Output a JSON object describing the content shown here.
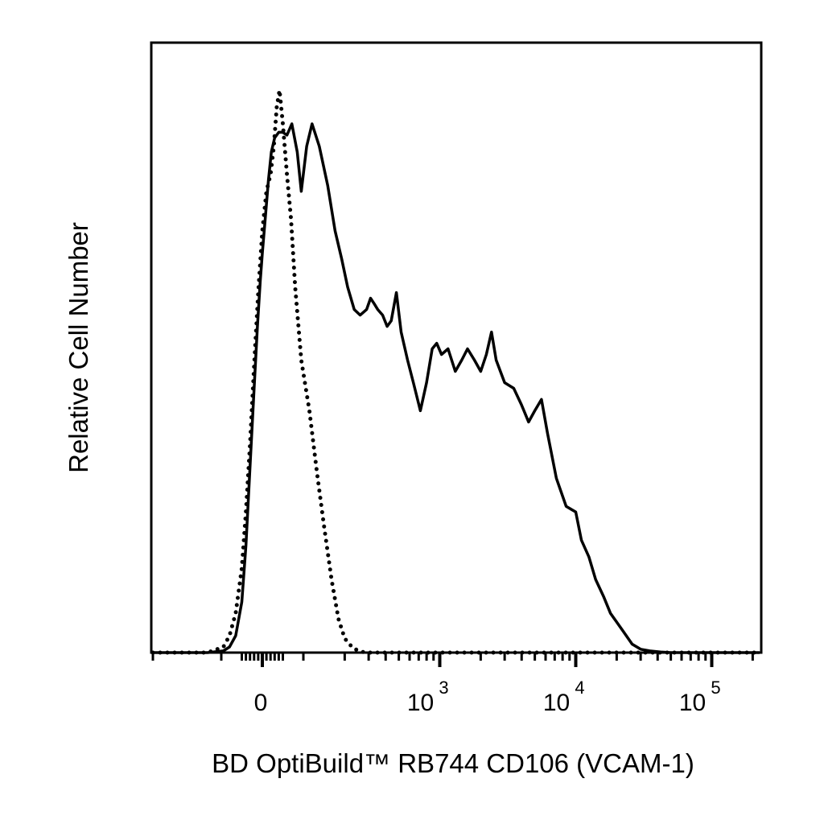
{
  "chart_data": {
    "type": "line",
    "title": "",
    "xlabel": "BD OptiBuild™ RB744 CD106 (VCAM-1)",
    "ylabel": "Relative Cell Number",
    "x_scale": "biexponential",
    "xlim": [
      -150,
      250000
    ],
    "ylim": [
      0,
      100
    ],
    "grid": false,
    "legend": "none",
    "x_ticks": [
      {
        "value": 0,
        "base": "0",
        "exp": ""
      },
      {
        "value": 1000,
        "base": "10",
        "exp": "3"
      },
      {
        "value": 10000,
        "base": "10",
        "exp": "4"
      },
      {
        "value": 100000,
        "base": "10",
        "exp": "5"
      }
    ],
    "series": [
      {
        "style": "solid",
        "color": "#000000",
        "x": [
          -150,
          -110,
          -95,
          -80,
          -65,
          -50,
          -40,
          -30,
          -20,
          -12,
          -5,
          0,
          8,
          15,
          22,
          30,
          40,
          50,
          60,
          72,
          85,
          95,
          105,
          115,
          130,
          150,
          170,
          190,
          210,
          235,
          260,
          290,
          310,
          330,
          350,
          380,
          410,
          440,
          480,
          520,
          580,
          640,
          720,
          800,
          880,
          950,
          1030,
          1150,
          1300,
          1450,
          1600,
          1800,
          2000,
          2200,
          2400,
          2600,
          3000,
          3500,
          4000,
          4500,
          5000,
          5600,
          6200,
          7200,
          8500,
          10000,
          11000,
          12500,
          14000,
          16000,
          18000,
          22000,
          26000,
          30000,
          35000,
          42000,
          50000,
          65000,
          80000,
          100000,
          150000,
          250000
        ],
        "y": [
          0,
          0,
          0.3,
          1,
          3,
          9,
          19,
          33,
          47,
          58,
          66,
          71,
          78,
          84,
          89,
          91.5,
          92.5,
          92.5,
          92,
          94,
          89,
          82,
          90,
          94,
          90,
          83,
          75,
          70,
          65,
          61,
          60,
          61,
          63,
          62,
          61,
          60,
          58,
          59,
          64,
          57,
          52,
          48,
          43,
          48,
          54,
          55,
          53,
          54,
          50,
          52,
          54,
          52,
          50,
          53,
          57,
          52,
          48,
          47,
          44,
          41,
          43,
          45,
          39,
          31,
          26,
          25,
          20,
          17,
          13,
          10,
          7,
          4,
          1.5,
          0.6,
          0.3,
          0.1,
          0,
          0,
          0,
          0,
          0,
          0
        ]
      },
      {
        "style": "dotted",
        "color": "#000000",
        "x": [
          -150,
          -110,
          -95,
          -80,
          -65,
          -50,
          -40,
          -30,
          -20,
          -10,
          0,
          10,
          20,
          28,
          35,
          42,
          50,
          60,
          70,
          80,
          95,
          110,
          125,
          140,
          160,
          180,
          200,
          230,
          260,
          290,
          320,
          360,
          420,
          500,
          600,
          800,
          1000,
          10000,
          250000
        ],
        "y": [
          0,
          0,
          1,
          3,
          7,
          15,
          25,
          37,
          51,
          64,
          75,
          82,
          85,
          90,
          97,
          100,
          94,
          85,
          77,
          65,
          52,
          43,
          32,
          23,
          13,
          6,
          2.5,
          0.8,
          0.2,
          0,
          0,
          0,
          0,
          0,
          0,
          0,
          0,
          0,
          0
        ]
      }
    ]
  }
}
